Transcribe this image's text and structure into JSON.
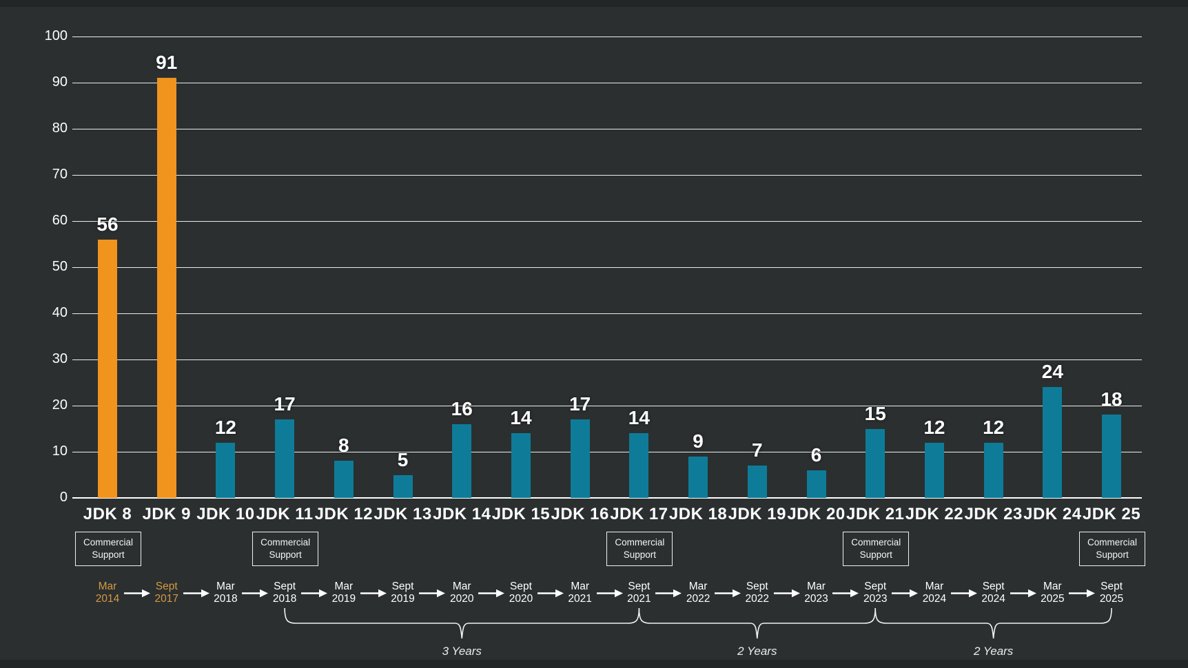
{
  "canvas": {
    "background": "#2b2f30",
    "letterbox_color": "#232627"
  },
  "chart_data": {
    "type": "bar",
    "title": "",
    "categories": [
      "JDK 8",
      "JDK 9",
      "JDK 10",
      "JDK 11",
      "JDK 12",
      "JDK 13",
      "JDK 14",
      "JDK 15",
      "JDK 16",
      "JDK 17",
      "JDK 18",
      "JDK 19",
      "JDK 20",
      "JDK 21",
      "JDK 22",
      "JDK 23",
      "JDK 24",
      "JDK 25"
    ],
    "values": [
      56,
      91,
      12,
      17,
      8,
      5,
      16,
      14,
      17,
      14,
      9,
      7,
      6,
      15,
      12,
      12,
      24,
      18
    ],
    "orange_indices": [
      0,
      1
    ],
    "colors": {
      "orange": "#f0941e",
      "teal": "#0e7c98"
    },
    "value_labels_shown": true,
    "xlabel": "",
    "ylabel": "",
    "ylim": [
      0,
      100
    ],
    "yticks": [
      0,
      10,
      20,
      30,
      40,
      50,
      60,
      70,
      80,
      90,
      100
    ],
    "grid": true,
    "gridline_color": "#ffffff",
    "legend": null
  },
  "support_badges": {
    "lines": [
      "Commercial",
      "Support"
    ],
    "categories": [
      "JDK 8",
      "JDK 11",
      "JDK 17",
      "JDK 21",
      "JDK 25"
    ]
  },
  "timeline": {
    "highlight_color": "#d59a41",
    "arrow_color": "#ffffff",
    "items": [
      {
        "month": "Mar",
        "year": "2014",
        "highlight": true
      },
      {
        "month": "Sept",
        "year": "2017",
        "highlight": true
      },
      {
        "month": "Mar",
        "year": "2018",
        "highlight": false
      },
      {
        "month": "Sept",
        "year": "2018",
        "highlight": false
      },
      {
        "month": "Mar",
        "year": "2019",
        "highlight": false
      },
      {
        "month": "Sept",
        "year": "2019",
        "highlight": false
      },
      {
        "month": "Mar",
        "year": "2020",
        "highlight": false
      },
      {
        "month": "Sept",
        "year": "2020",
        "highlight": false
      },
      {
        "month": "Mar",
        "year": "2021",
        "highlight": false
      },
      {
        "month": "Sept",
        "year": "2021",
        "highlight": false
      },
      {
        "month": "Mar",
        "year": "2022",
        "highlight": false
      },
      {
        "month": "Sept",
        "year": "2022",
        "highlight": false
      },
      {
        "month": "Mar",
        "year": "2023",
        "highlight": false
      },
      {
        "month": "Sept",
        "year": "2023",
        "highlight": false
      },
      {
        "month": "Mar",
        "year": "2024",
        "highlight": false
      },
      {
        "month": "Sept",
        "year": "2024",
        "highlight": false
      },
      {
        "month": "Mar",
        "year": "2025",
        "highlight": false
      },
      {
        "month": "Sept",
        "year": "2025",
        "highlight": false
      }
    ]
  },
  "braces": {
    "color": "#f2f2f2",
    "items": [
      {
        "from_index": 3,
        "to_index": 9,
        "label": "3 Years"
      },
      {
        "from_index": 9,
        "to_index": 13,
        "label": "2 Years"
      },
      {
        "from_index": 13,
        "to_index": 17,
        "label": "2 Years"
      }
    ]
  }
}
